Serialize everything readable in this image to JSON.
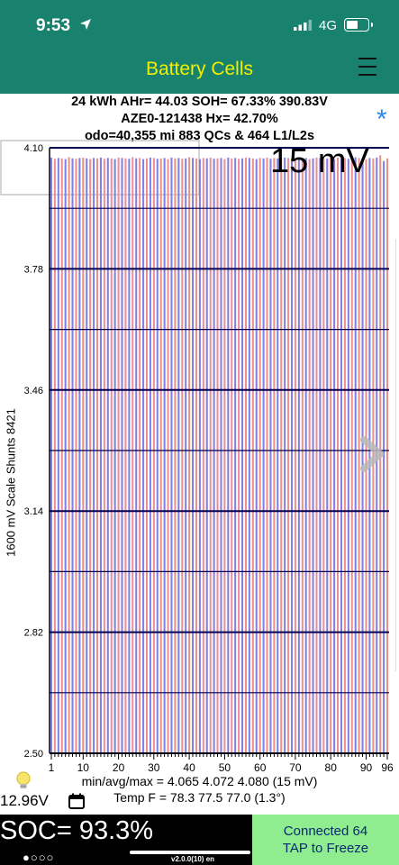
{
  "status_bar": {
    "time": "9:53",
    "network": "4G",
    "battery_level": 0.55
  },
  "nav": {
    "title": "Battery Cells"
  },
  "info": {
    "line1": "24 kWh  AHr= 44.03  SOH= 67.33%   390.83V",
    "line2": "AZE0-121438   Hx= 42.70%",
    "line3": "odo=40,355 mi 883 QCs & 464 L1/L2s"
  },
  "chart": {
    "overlay_label": "15 mV",
    "ylabel": "1600 mV Scale   Shunts 8421"
  },
  "chart_data": {
    "type": "bar",
    "ylim": [
      2.5,
      4.1
    ],
    "ytick_labels": [
      "4.10",
      "3.78",
      "3.46",
      "3.14",
      "2.82",
      "2.50"
    ],
    "xtick_labels": [
      "1",
      "10",
      "20",
      "30",
      "40",
      "50",
      "60",
      "70",
      "80",
      "90",
      "96"
    ],
    "cell_count": 96,
    "values": [
      4.074,
      4.071,
      4.073,
      4.072,
      4.07,
      4.075,
      4.072,
      4.071,
      4.073,
      4.074,
      4.072,
      4.07,
      4.073,
      4.072,
      4.074,
      4.071,
      4.073,
      4.072,
      4.07,
      4.074,
      4.073,
      4.072,
      4.071,
      4.075,
      4.072,
      4.073,
      4.07,
      4.072,
      4.074,
      4.073,
      4.071,
      4.072,
      4.073,
      4.07,
      4.074,
      4.072,
      4.073,
      4.071,
      4.072,
      4.075,
      4.073,
      4.072,
      4.07,
      4.073,
      4.072,
      4.074,
      4.071,
      4.072,
      4.073,
      4.07,
      4.074,
      4.072,
      4.073,
      4.071,
      4.072,
      4.074,
      4.073,
      4.072,
      4.07,
      4.073,
      4.072,
      4.074,
      4.071,
      4.073,
      4.072,
      4.07,
      4.074,
      4.073,
      4.072,
      4.071,
      4.075,
      4.072,
      4.073,
      4.07,
      4.072,
      4.074,
      4.073,
      4.071,
      4.072,
      4.073,
      4.07,
      4.074,
      4.072,
      4.073,
      4.071,
      4.072,
      4.075,
      4.073,
      4.072,
      4.07,
      4.073,
      4.072,
      4.074,
      4.08,
      4.065,
      4.072
    ],
    "colors": {
      "odd": "#7f7fe6",
      "even": "#ee8f8f",
      "gridline": "#000050"
    }
  },
  "stats": {
    "line1": "min/avg/max = 4.065 4.072 4.080  (15 mV)",
    "line2": "Temp F = 78.3  77.5  77.0  (1.3°)"
  },
  "footer": {
    "voltage": "12.96V",
    "soc": "SOC= 93.3%",
    "dots": "●○○○",
    "connect_line1": "Connected 64",
    "connect_line2": "TAP to Freeze",
    "version": "v2.0.0(10) en"
  },
  "icons": [
    "location-arrow-icon",
    "cell-signal-icon",
    "battery-icon",
    "menu-icon",
    "star-icon",
    "chevron-right-icon",
    "lightbulb-icon",
    "calendar-icon"
  ]
}
